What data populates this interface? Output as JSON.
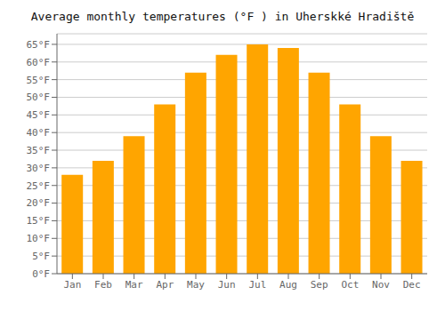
{
  "chart_data": {
    "type": "bar",
    "title": "Average monthly temperatures (°F ) in Uherskké Hradiště",
    "categories": [
      "Jan",
      "Feb",
      "Mar",
      "Apr",
      "May",
      "Jun",
      "Jul",
      "Aug",
      "Sep",
      "Oct",
      "Nov",
      "Dec"
    ],
    "values": [
      28.0,
      32.0,
      39.0,
      48.0,
      57.0,
      62.0,
      65.0,
      64.0,
      57.0,
      48.0,
      39.0,
      32.0
    ],
    "color": "#FFA500",
    "ylim": [
      0,
      68
    ],
    "yticks": [
      {
        "value": 0,
        "label": "0°F"
      },
      {
        "value": 5,
        "label": "5°F"
      },
      {
        "value": 10,
        "label": "10°F"
      },
      {
        "value": 15,
        "label": "15°F"
      },
      {
        "value": 20,
        "label": "20°F"
      },
      {
        "value": 25,
        "label": "25°F"
      },
      {
        "value": 30,
        "label": "30°F"
      },
      {
        "value": 35,
        "label": "35°F"
      },
      {
        "value": 40,
        "label": "40°F"
      },
      {
        "value": 45,
        "label": "45°F"
      },
      {
        "value": 50,
        "label": "50°F"
      },
      {
        "value": 55,
        "label": "55°F"
      },
      {
        "value": 60,
        "label": "60°F"
      },
      {
        "value": 65,
        "label": "65°F"
      }
    ],
    "grid": true
  }
}
